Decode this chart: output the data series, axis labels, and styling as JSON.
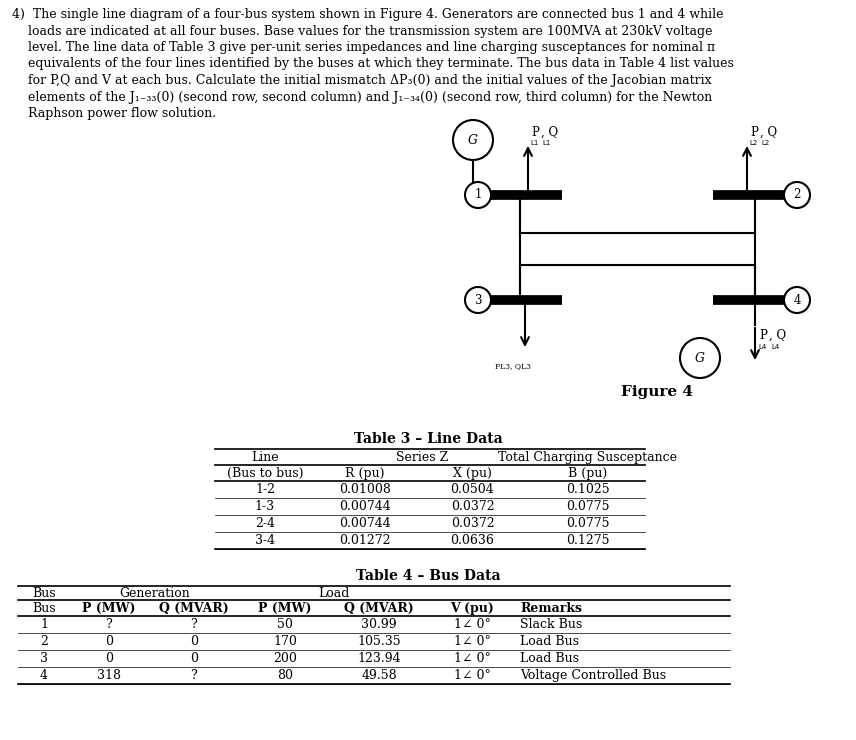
{
  "question_text_lines": [
    "4)  The single line diagram of a four-bus system shown in Figure 4. Generators are connected bus 1 and 4 while",
    "    loads are indicated at all four buses. Base values for the transmission system are 100MVA at 230kV voltage",
    "    level. The line data of Table 3 give per-unit series impedances and line charging susceptances for nominal π",
    "    equivalents of the four lines identified by the buses at which they terminate. The bus data in Table 4 list values",
    "    for P,Q and V at each bus. Calculate the initial mismatch ΔP₃(0) and the initial values of the Jacobian matrix",
    "    elements of the J₁₋₃₃(0) (second row, second column) and J₁₋₃₄(0) (second row, third column) for the Newton",
    "    Raphson power flow solution."
  ],
  "figure_caption": "Figure 4",
  "table3_title": "Table 3 – Line Data",
  "table3_data": [
    [
      "1-2",
      "0.01008",
      "0.0504",
      "0.1025"
    ],
    [
      "1-3",
      "0.00744",
      "0.0372",
      "0.0775"
    ],
    [
      "2-4",
      "0.00744",
      "0.0372",
      "0.0775"
    ],
    [
      "3-4",
      "0.01272",
      "0.0636",
      "0.1275"
    ]
  ],
  "table4_title": "Table 4 – Bus Data",
  "table4_data": [
    [
      "1",
      "?",
      "?",
      "50",
      "30.99",
      "1∠ 0°",
      "Slack Bus"
    ],
    [
      "2",
      "0",
      "0",
      "170",
      "105.35",
      "1∠ 0°",
      "Load Bus"
    ],
    [
      "3",
      "0",
      "0",
      "200",
      "123.94",
      "1∠ 0°",
      "Load Bus"
    ],
    [
      "4",
      "318",
      "?",
      "80",
      "49.58",
      "1∠ 0°",
      "Voltage Controlled Bus"
    ]
  ],
  "bg_color": "#ffffff",
  "text_color": "#000000"
}
